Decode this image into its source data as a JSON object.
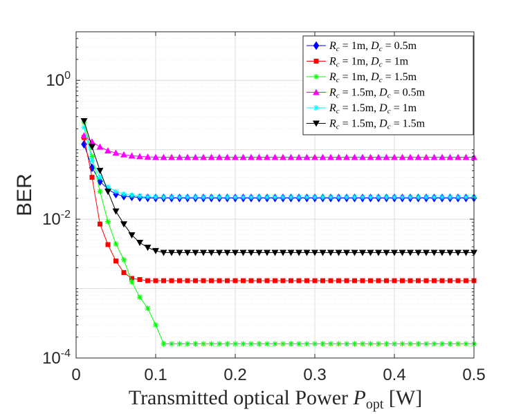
{
  "chart_data": {
    "type": "line",
    "xlabel": "Transmitted optical Power",
    "xlabel_symbol": "P",
    "xlabel_subscript": "opt",
    "xlabel_unit": "[W]",
    "ylabel": "BER",
    "xlim": [
      0,
      0.5
    ],
    "ylim": [
      0.0001,
      5
    ],
    "yscale": "log",
    "grid": true,
    "minor_grid": true,
    "legend_position": "top-right",
    "xticks": [
      0,
      0.1,
      0.2,
      0.3,
      0.4,
      0.5
    ],
    "xtick_labels": [
      "0",
      "0.1",
      "0.2",
      "0.3",
      "0.4",
      "0.5"
    ],
    "yticks": [
      0.0001,
      0.01,
      1
    ],
    "ytick_labels": [
      {
        "base": "10",
        "exp": "-4"
      },
      {
        "base": "10",
        "exp": "-2"
      },
      {
        "base": "10",
        "exp": "0"
      }
    ],
    "series": [
      {
        "name": "R_c = 1m, D_c = 0.5m",
        "legend": {
          "r": "1m",
          "d": "0.5m"
        },
        "color": "#0000ff",
        "marker": "diamond",
        "start": 0.01,
        "step": 0.01,
        "values": [
          0.12,
          0.055,
          0.035,
          0.027,
          0.023,
          0.0215,
          0.021,
          0.0205,
          0.0203,
          0.0202,
          0.0202
        ]
      },
      {
        "name": "R_c = 1m, D_c = 1m",
        "legend": {
          "r": "1m",
          "d": "1m"
        },
        "color": "#ff0000",
        "marker": "square",
        "start": 0.01,
        "step": 0.01,
        "values": [
          0.15,
          0.04,
          0.0085,
          0.0043,
          0.0025,
          0.0017,
          0.0014,
          0.00135,
          0.0013,
          0.0013,
          0.0013
        ]
      },
      {
        "name": "R_c = 1m, D_c = 1.5m",
        "legend": {
          "r": "1m",
          "d": "1.5m"
        },
        "color": "#00ff00",
        "marker": "star",
        "start": 0.01,
        "step": 0.01,
        "values": [
          0.25,
          0.08,
          0.025,
          0.0092,
          0.0044,
          0.0026,
          0.00125,
          0.00075,
          0.00052,
          0.0003,
          0.00016
        ]
      },
      {
        "name": "R_c = 1.5m, D_c = 0.5m",
        "legend": {
          "r": "1.5m",
          "d": "0.5m"
        },
        "color": "#ff00ff",
        "marker": "triangle-up",
        "start": 0.01,
        "step": 0.01,
        "values": [
          0.16,
          0.13,
          0.11,
          0.097,
          0.09,
          0.085,
          0.082,
          0.08,
          0.079,
          0.078,
          0.078
        ]
      },
      {
        "name": "R_c = 1.5m, D_c = 1m",
        "legend": {
          "r": "1.5m",
          "d": "1m"
        },
        "color": "#00ffff",
        "marker": "star",
        "start": 0.01,
        "step": 0.01,
        "values": [
          0.21,
          0.07,
          0.04,
          0.029,
          0.025,
          0.023,
          0.022,
          0.0215,
          0.021,
          0.0208,
          0.0207
        ]
      },
      {
        "name": "R_c = 1.5m, D_c = 1.5m",
        "legend": {
          "r": "1.5m",
          "d": "1.5m"
        },
        "color": "#000000",
        "marker": "triangle-down",
        "start": 0.01,
        "step": 0.01,
        "values": [
          0.26,
          0.11,
          0.05,
          0.025,
          0.013,
          0.0085,
          0.0059,
          0.0046,
          0.0039,
          0.0035,
          0.0033
        ]
      }
    ]
  }
}
